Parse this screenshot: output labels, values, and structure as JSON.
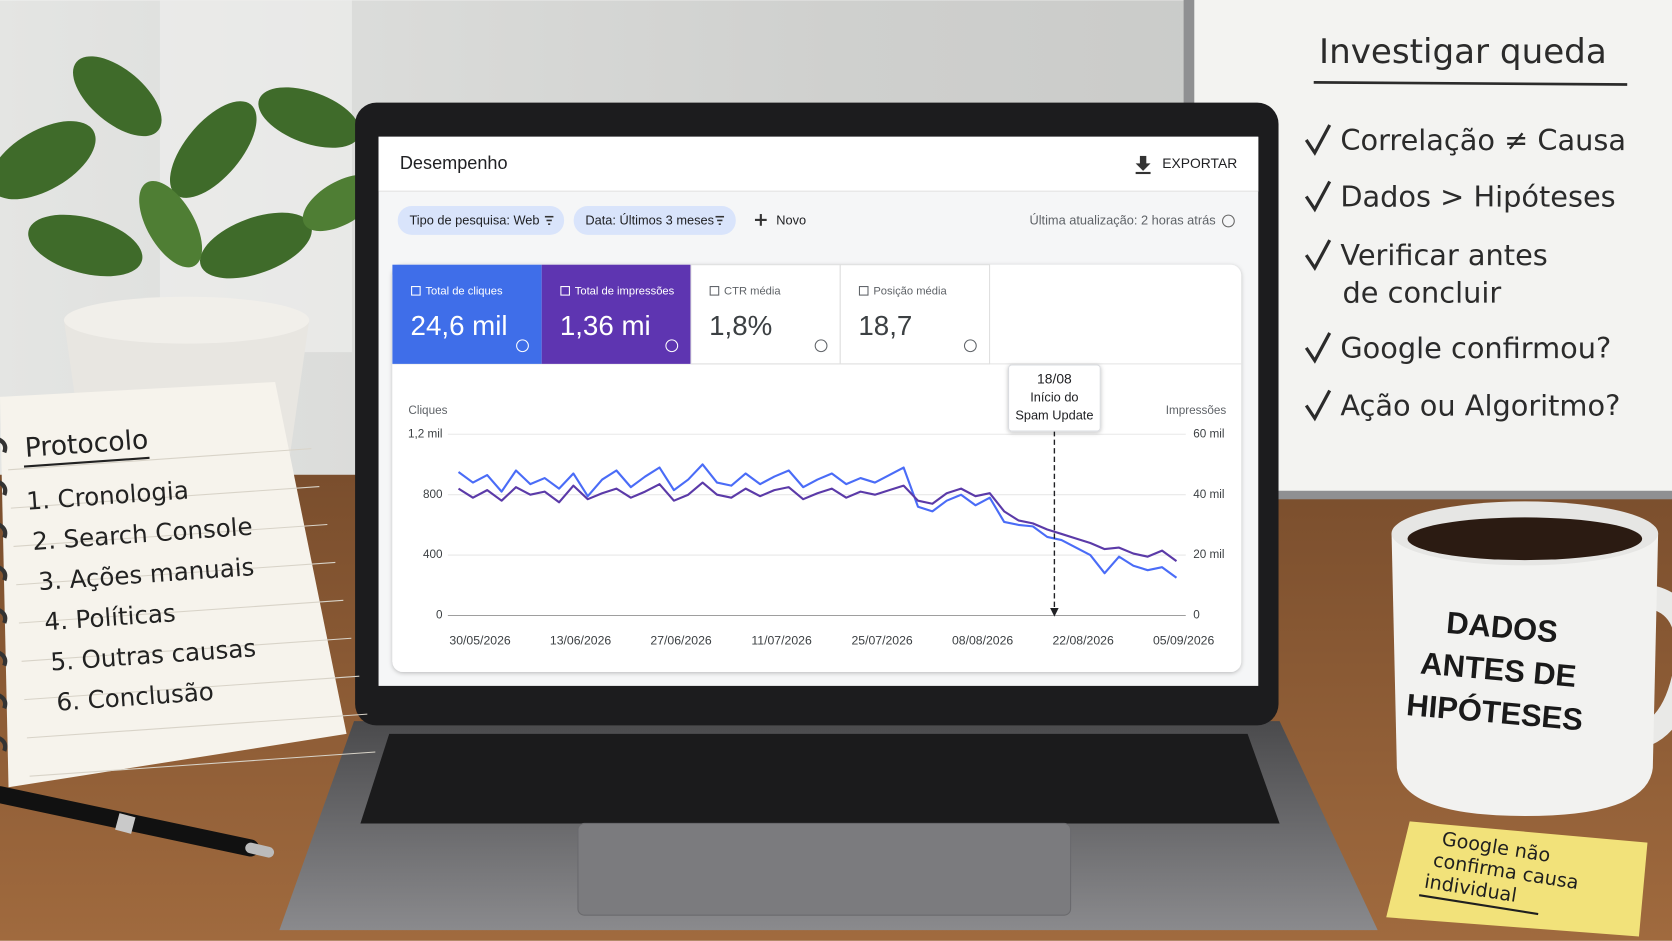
{
  "header": {
    "title": "Desempenho",
    "export": "EXPORTAR"
  },
  "filters": {
    "chips": [
      "Tipo de pesquisa: Web",
      "Data: Últimos 3 meses"
    ],
    "new": "Novo",
    "updated": "Última atualização: 2 horas atrás"
  },
  "metrics": [
    {
      "label": "Total de cliques",
      "value": "24,6 mil",
      "color": "#3f6ee9"
    },
    {
      "label": "Total de impressões",
      "value": "1,36 mi",
      "color": "#5e35b1"
    },
    {
      "label": "CTR média",
      "value": "1,8%"
    },
    {
      "label": "Posição média",
      "value": "18,7"
    }
  ],
  "chart_data": {
    "type": "line",
    "y_label": "Cliques",
    "y2_label": "Impressões",
    "grid": true,
    "x": [
      "27/05/2026",
      "29/05/2026",
      "31/05/2026",
      "02/06/2026",
      "04/06/2026",
      "06/06/2026",
      "08/06/2026",
      "10/06/2026",
      "12/06/2026",
      "14/06/2026",
      "16/06/2026",
      "18/06/2026",
      "20/06/2026",
      "22/06/2026",
      "24/06/2026",
      "26/06/2026",
      "28/06/2026",
      "30/06/2026",
      "02/07/2026",
      "04/07/2026",
      "06/07/2026",
      "08/07/2026",
      "10/07/2026",
      "12/07/2026",
      "14/07/2026",
      "16/07/2026",
      "18/07/2026",
      "20/07/2026",
      "22/07/2026",
      "24/07/2026",
      "26/07/2026",
      "28/07/2026",
      "30/07/2026",
      "01/08/2026",
      "03/08/2026",
      "05/08/2026",
      "07/08/2026",
      "09/08/2026",
      "11/08/2026",
      "13/08/2026",
      "15/08/2026",
      "17/08/2026",
      "19/08/2026",
      "21/08/2026",
      "23/08/2026",
      "25/08/2026",
      "27/08/2026",
      "29/08/2026",
      "31/08/2026",
      "02/09/2026",
      "04/09/2026"
    ],
    "xlim": [
      "27/05/2026",
      "05/09/2026"
    ],
    "xticks": [
      "30/05/2026",
      "13/06/2026",
      "27/06/2026",
      "11/07/2026",
      "25/07/2026",
      "08/08/2026",
      "22/08/2026",
      "05/09/2026"
    ],
    "ylim": [
      0,
      1200
    ],
    "yticks": [
      0,
      400,
      800,
      {
        "value": 1200,
        "label": "1,2 mil"
      }
    ],
    "y2lim": [
      0,
      60000
    ],
    "y2ticks": [
      0,
      {
        "value": 20000,
        "label": "20 mil"
      },
      {
        "value": 40000,
        "label": "40 mil"
      },
      {
        "value": 60000,
        "label": "60 mil"
      }
    ],
    "series": [
      {
        "name": "Total de cliques",
        "color": "#4a6cf7",
        "values": [
          950,
          880,
          930,
          820,
          960,
          870,
          910,
          840,
          940,
          790,
          900,
          960,
          850,
          920,
          980,
          830,
          900,
          1000,
          880,
          860,
          940,
          870,
          920,
          960,
          850,
          900,
          940,
          870,
          910,
          880,
          930,
          980,
          720,
          690,
          760,
          800,
          730,
          780,
          620,
          600,
          590,
          520,
          500,
          450,
          400,
          280,
          390,
          330,
          300,
          320,
          250
        ]
      },
      {
        "name": "Total de impressões",
        "color": "#5b3aa8",
        "axis": "y2",
        "values": [
          42000,
          39000,
          41500,
          38000,
          42500,
          40000,
          41000,
          37500,
          43000,
          38500,
          40500,
          42000,
          39000,
          41000,
          43500,
          38000,
          40000,
          44000,
          40000,
          39000,
          42000,
          39500,
          41500,
          42500,
          38500,
          40500,
          42000,
          39000,
          41000,
          40000,
          41500,
          43000,
          38000,
          37000,
          40500,
          42000,
          39500,
          40500,
          34500,
          31500,
          30500,
          28500,
          27000,
          25500,
          24000,
          22000,
          22500,
          20500,
          19500,
          21500,
          18000
        ]
      }
    ],
    "annotation": {
      "x": "18/08/2026",
      "lines": [
        "18/08",
        "Início do",
        "Spam Update"
      ]
    }
  },
  "whiteboard": {
    "title": "Investigar queda",
    "items": [
      [
        "Correlação ≠ Causa"
      ],
      [
        "Dados > Hipóteses"
      ],
      [
        "Verificar antes",
        "de concluir"
      ],
      [
        "Google confirmou?"
      ],
      [
        "Ação ou Algoritmo?"
      ]
    ]
  },
  "notebook": {
    "title": "Protocolo",
    "items": [
      "1. Cronologia",
      "2. Search Console",
      "3. Ações manuais",
      "4. Políticas",
      "5. Outras causas",
      "6. Conclusão"
    ]
  },
  "mug": {
    "lines": [
      "DADOS",
      "ANTES DE",
      "HIPÓTESES"
    ]
  },
  "sticky": {
    "lines": [
      "Google não",
      "confirma causa",
      "individual"
    ]
  }
}
